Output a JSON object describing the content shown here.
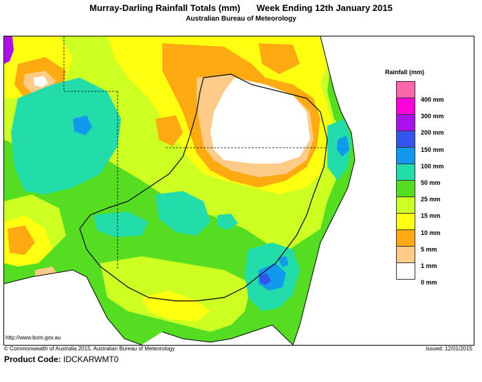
{
  "header": {
    "title_left": "Murray-Darling Rainfall Totals (mm)",
    "title_right": "Week Ending 12th January 2015",
    "subtitle": "Australian Bureau of Meteorology"
  },
  "legend": {
    "title": "Rainfall (mm)",
    "items": [
      {
        "label": "400 mm",
        "color": "#ff66aa"
      },
      {
        "label": "300 mm",
        "color": "#ff00dd"
      },
      {
        "label": "200 mm",
        "color": "#aa11ee"
      },
      {
        "label": "150 mm",
        "color": "#3355ee"
      },
      {
        "label": "100 mm",
        "color": "#1199ee"
      },
      {
        "label": "50 mm",
        "color": "#22ddaa"
      },
      {
        "label": "25 mm",
        "color": "#55dd22"
      },
      {
        "label": "15 mm",
        "color": "#ccff22"
      },
      {
        "label": "10 mm",
        "color": "#ffff11"
      },
      {
        "label": "5 mm",
        "color": "#ffaa11"
      },
      {
        "label": "1 mm",
        "color": "#ffcc88"
      },
      {
        "label": "0 mm",
        "color": "#ffffff"
      }
    ]
  },
  "footer": {
    "url": "http://www.bom.gov.au",
    "copyright": "© Commonwealth of Australia 2015, Australian Bureau of Meteorology",
    "issued": "Issued: 12/01/2015",
    "product_label": "Product Code:",
    "product_code": "IDCKARWMT0"
  }
}
